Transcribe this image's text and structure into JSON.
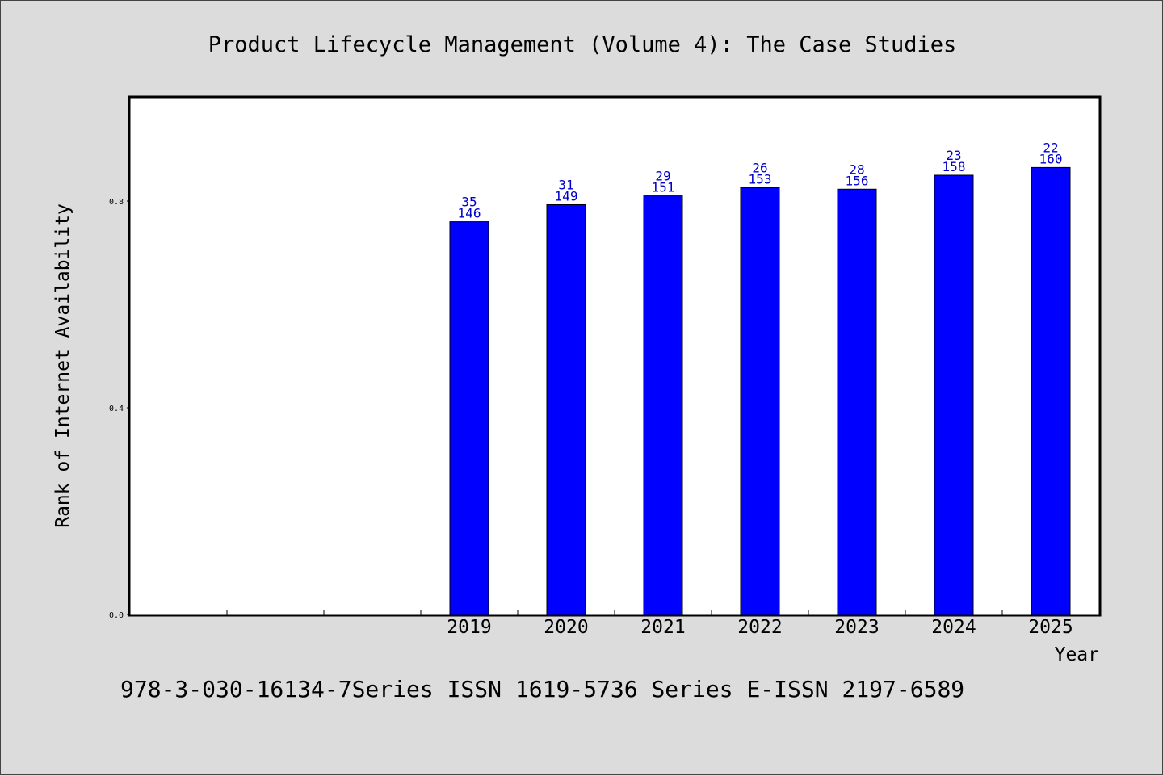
{
  "chart_data": {
    "type": "bar",
    "title": "Product Lifecycle Management (Volume 4): The Case Studies",
    "xlabel": "Year",
    "ylabel": "Rank of Internet Availability",
    "categories": [
      "",
      "",
      "",
      "2019",
      "2020",
      "2021",
      "2022",
      "2023",
      "2024",
      "2025"
    ],
    "values": [
      null,
      null,
      null,
      0.76,
      0.793,
      0.81,
      0.826,
      0.823,
      0.85,
      0.865
    ],
    "bar_labels": [
      null,
      null,
      null,
      [
        "35",
        "146"
      ],
      [
        "31",
        "149"
      ],
      [
        "29",
        "151"
      ],
      [
        "26",
        "153"
      ],
      [
        "28",
        "156"
      ],
      [
        "23",
        "158"
      ],
      [
        "22",
        "160"
      ]
    ],
    "ylim": [
      0,
      1.0
    ],
    "yticks": [
      {
        "value": 0.0,
        "label": "0.0"
      },
      {
        "value": 0.4,
        "label": "0.4"
      },
      {
        "value": 0.8,
        "label": "0.8"
      }
    ],
    "bar_color": "#0000ff",
    "label_color": "#0000cc",
    "grid": false
  },
  "footer": {
    "text": "978-3-030-16134-7Series ISSN 1619-5736 Series E-ISSN 2197-6589"
  }
}
